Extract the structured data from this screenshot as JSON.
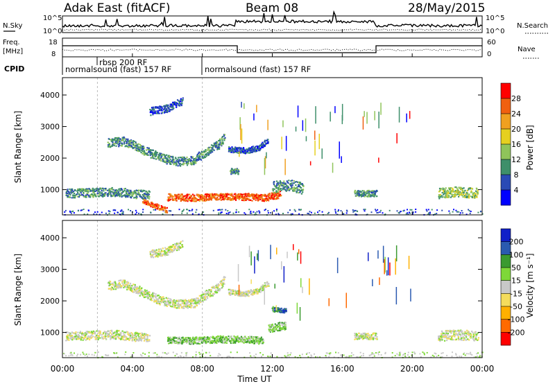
{
  "header": {
    "station": "Adak East (fitACF)",
    "beam": "Beam 08",
    "date": "28/May/2015"
  },
  "noise_panel": {
    "left_label": "N.Sky",
    "right_label": "N.Search",
    "ticks": [
      "10^5",
      "10^0"
    ]
  },
  "freq_panel": {
    "left_label_top": "Freq.",
    "left_label_bottom": "[MHz]",
    "right_label": "Nave",
    "left_ticks": [
      "18",
      "8"
    ],
    "right_ticks": [
      "60",
      "0"
    ]
  },
  "cpid": {
    "label": "CPID",
    "segments": [
      {
        "start_hr": 0.0,
        "text": "normalsound (fast) 157 RF",
        "row": "lower"
      },
      {
        "start_hr": 2.0,
        "text": "rbsp 200 RF",
        "row": "upper"
      },
      {
        "start_hr": 8.0,
        "text": "normalsound (fast) 157 RF",
        "row": "lower"
      }
    ]
  },
  "colors": {
    "power": [
      "#0000ff",
      "#2a4ab5",
      "#3e8f6a",
      "#8fc45a",
      "#e6d020",
      "#f0a020",
      "#f06010",
      "#ff0000"
    ],
    "velocity": [
      "#ff0000",
      "#ff6a00",
      "#ffb000",
      "#f4dc5c",
      "#c8c8c8",
      "#7ed838",
      "#3a9a30",
      "#2a5ab0",
      "#1020c8"
    ]
  },
  "chart_data": [
    {
      "type": "heatmap",
      "quantity": "power",
      "ylabel": "Slant Range [km]",
      "ylim": [
        200,
        4550
      ],
      "yticks": [
        1000,
        2000,
        3000,
        4000
      ],
      "xlim": [
        0,
        24
      ],
      "colorbar_label": "Power [dB]",
      "colorbar_ticks": [
        "28",
        "24",
        "20",
        "16",
        "12",
        "8",
        "4"
      ],
      "bands": [
        {
          "path": [
            [
              2.6,
              2500
            ],
            [
              3.5,
              2550
            ],
            [
              4.5,
              2300
            ],
            [
              5.5,
              2050
            ],
            [
              6.5,
              1900
            ],
            [
              7.5,
              1950
            ],
            [
              8.3,
              2250
            ],
            [
              8.9,
              2450
            ],
            [
              9.3,
              2700
            ]
          ],
          "halfwidth": 140,
          "level": 2
        },
        {
          "path": [
            [
              9.5,
              2300
            ],
            [
              10.5,
              2250
            ],
            [
              11.2,
              2350
            ],
            [
              11.8,
              2600
            ]
          ],
          "halfwidth": 90,
          "level": 1
        },
        {
          "path": [
            [
              9.6,
              1600
            ],
            [
              10.1,
              1600
            ]
          ],
          "halfwidth": 90,
          "level": 2
        },
        {
          "path": [
            [
              0.2,
              900
            ],
            [
              1.5,
              920
            ],
            [
              3.0,
              950
            ],
            [
              4.2,
              880
            ],
            [
              5.0,
              850
            ]
          ],
          "halfwidth": 140,
          "level": 2
        },
        {
          "path": [
            [
              4.6,
              650
            ],
            [
              5.5,
              450
            ],
            [
              6.0,
              350
            ]
          ],
          "halfwidth": 80,
          "level": 6
        },
        {
          "path": [
            [
              6.0,
              780
            ],
            [
              7.5,
              760
            ],
            [
              9.0,
              800
            ],
            [
              10.5,
              790
            ],
            [
              11.5,
              760
            ],
            [
              12.5,
              870
            ]
          ],
          "halfwidth": 110,
          "level": 6
        },
        {
          "path": [
            [
              12.0,
              1100
            ],
            [
              13.0,
              1150
            ],
            [
              13.8,
              1050
            ]
          ],
          "halfwidth": 180,
          "level": 2
        },
        {
          "path": [
            [
              16.7,
              900
            ],
            [
              18.0,
              900
            ]
          ],
          "halfwidth": 100,
          "level": 2
        },
        {
          "path": [
            [
              21.5,
              900
            ],
            [
              22.5,
              950
            ],
            [
              23.8,
              900
            ]
          ],
          "halfwidth": 160,
          "level": 3
        },
        {
          "path": [
            [
              5.0,
              3500
            ],
            [
              6.0,
              3600
            ],
            [
              6.9,
              3850
            ]
          ],
          "halfwidth": 120,
          "level": 1
        }
      ]
    },
    {
      "type": "heatmap",
      "quantity": "velocity",
      "ylabel": "Slant Range [km]",
      "ylim": [
        200,
        4550
      ],
      "yticks": [
        1000,
        2000,
        3000,
        4000
      ],
      "xlim": [
        0,
        24
      ],
      "xlabel": "Time UT",
      "xticks": [
        "00:00",
        "04:00",
        "08:00",
        "12:00",
        "16:00",
        "20:00",
        "00:00"
      ],
      "colorbar_label": "Velocity [m s⁻¹]",
      "colorbar_ticks": [
        "200",
        "100",
        "50",
        "15",
        "-15",
        "-50",
        "-100",
        "-200"
      ],
      "bands": [
        {
          "path": [
            [
              2.6,
              2500
            ],
            [
              3.5,
              2550
            ],
            [
              4.5,
              2300
            ],
            [
              5.5,
              2050
            ],
            [
              6.5,
              1900
            ],
            [
              7.5,
              1950
            ],
            [
              8.3,
              2250
            ],
            [
              8.9,
              2450
            ],
            [
              9.3,
              2700
            ]
          ],
          "halfwidth": 140,
          "level": 4
        },
        {
          "path": [
            [
              9.5,
              2300
            ],
            [
              10.5,
              2250
            ],
            [
              11.2,
              2350
            ],
            [
              11.8,
              2600
            ]
          ],
          "halfwidth": 90,
          "level": 4
        },
        {
          "path": [
            [
              0.2,
              900
            ],
            [
              1.5,
              920
            ],
            [
              3.0,
              950
            ],
            [
              4.2,
              880
            ],
            [
              5.0,
              850
            ]
          ],
          "halfwidth": 140,
          "level": 4
        },
        {
          "path": [
            [
              6.0,
              780
            ],
            [
              7.5,
              760
            ],
            [
              9.0,
              800
            ],
            [
              10.5,
              790
            ],
            [
              11.5,
              760
            ]
          ],
          "halfwidth": 110,
          "level": 5
        },
        {
          "path": [
            [
              11.8,
              1150
            ],
            [
              12.8,
              1250
            ]
          ],
          "halfwidth": 130,
          "level": 5
        },
        {
          "path": [
            [
              12.0,
              1750
            ],
            [
              12.8,
              1700
            ]
          ],
          "halfwidth": 70,
          "level": 7
        },
        {
          "path": [
            [
              16.7,
              900
            ],
            [
              18.0,
              900
            ]
          ],
          "halfwidth": 100,
          "level": 4
        },
        {
          "path": [
            [
              21.5,
              900
            ],
            [
              22.5,
              950
            ],
            [
              23.8,
              900
            ]
          ],
          "halfwidth": 160,
          "level": 4
        },
        {
          "path": [
            [
              5.0,
              3500
            ],
            [
              6.0,
              3600
            ],
            [
              6.9,
              3850
            ]
          ],
          "halfwidth": 120,
          "level": 4
        }
      ]
    }
  ]
}
